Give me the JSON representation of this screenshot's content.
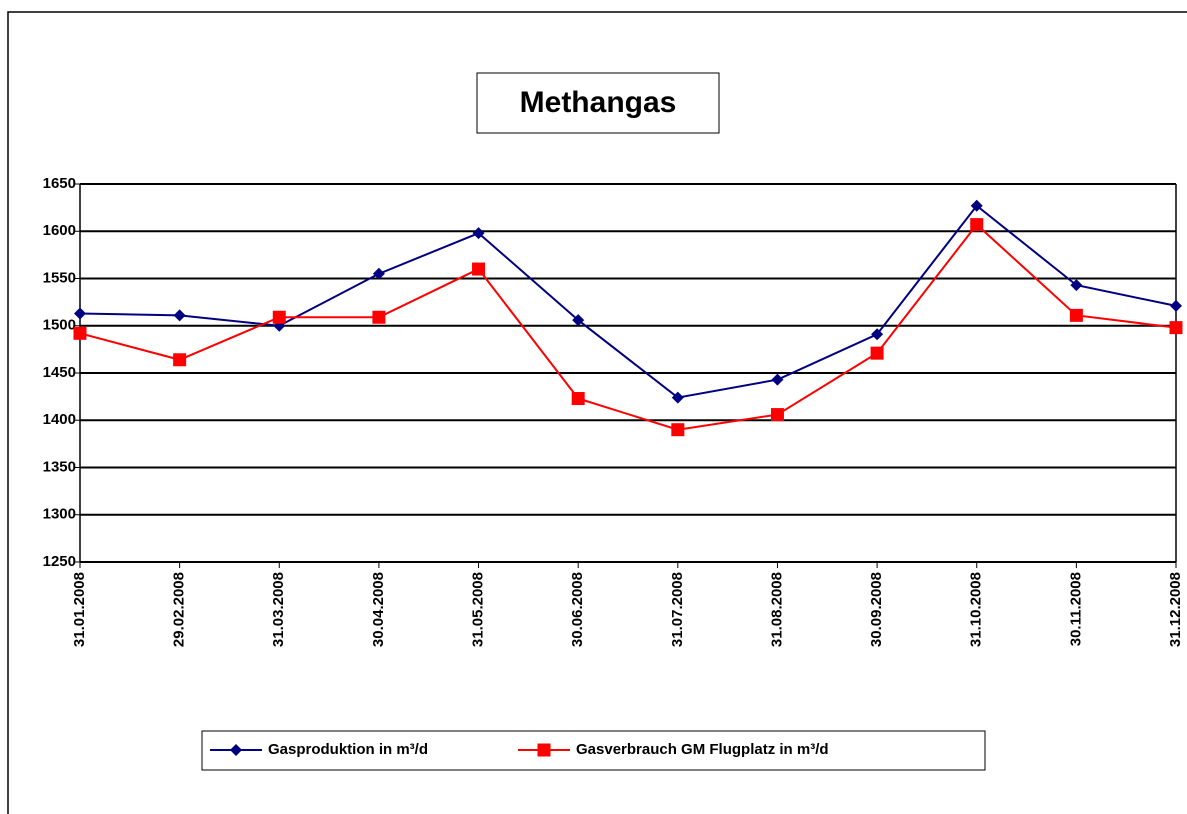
{
  "chart_data": {
    "type": "line",
    "title": "Methangas",
    "categories": [
      "31.01.2008",
      "29.02.2008",
      "31.03.2008",
      "30.04.2008",
      "31.05.2008",
      "30.06.2008",
      "31.07.2008",
      "31.08.2008",
      "30.09.2008",
      "31.10.2008",
      "30.11.2008",
      "31.12.2008"
    ],
    "series": [
      {
        "name": "Gasproduktion  in  m³/d",
        "color": "#000080",
        "marker": "diamond",
        "values": [
          1513,
          1511,
          1500,
          1555,
          1598,
          1506,
          1424,
          1443,
          1491,
          1627,
          1543,
          1521
        ]
      },
      {
        "name": "Gasverbrauch GM Flugplatz  in  m³/d",
        "color": "#ff0000",
        "marker": "square",
        "values": [
          1492,
          1464,
          1509,
          1509,
          1560,
          1423,
          1390,
          1406,
          1471,
          1607,
          1511,
          1498
        ]
      }
    ],
    "ylim": [
      1250,
      1650
    ],
    "yticks": [
      1250,
      1300,
      1350,
      1400,
      1450,
      1500,
      1550,
      1600,
      1650
    ],
    "grid": true,
    "legend": "bottom"
  }
}
